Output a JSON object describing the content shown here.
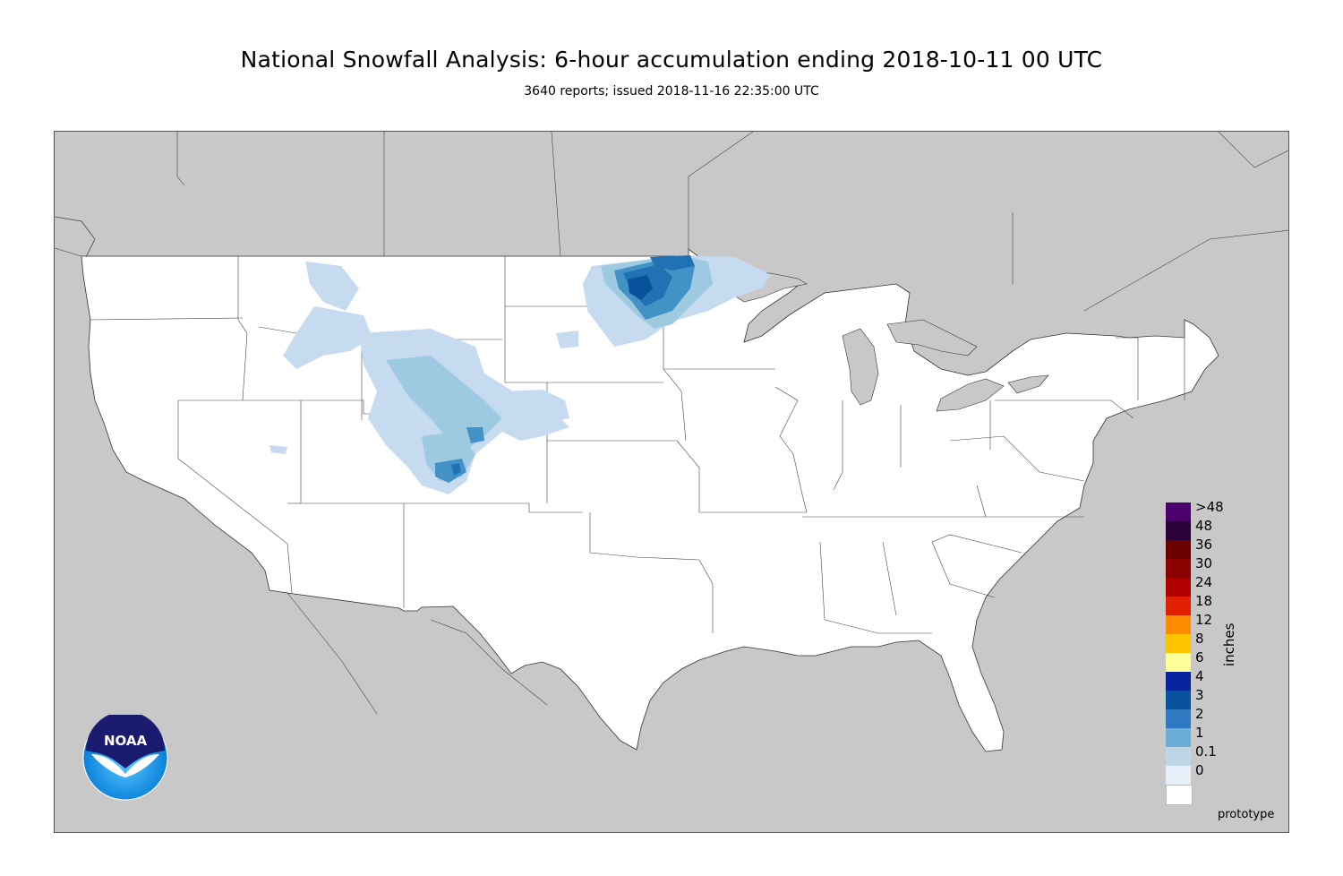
{
  "header": {
    "title": "National Snowfall Analysis: 6-hour accumulation ending 2018-10-11 00 UTC",
    "subtitle": "3640 reports; issued 2018-11-16 22:35:00 UTC"
  },
  "map": {
    "land_color": "#ffffff",
    "background_color": "#c8c8c8",
    "snow_palette": {
      "trace": "#c6dbef",
      "light": "#9ecae1",
      "moderate": "#4292c6",
      "heavy": "#08519c"
    }
  },
  "legend": {
    "unit": "inches",
    "levels": [
      ">48",
      "48",
      "36",
      "30",
      "24",
      "18",
      "12",
      "8",
      "6",
      "4",
      "3",
      "2",
      "1",
      "0.1",
      "0"
    ],
    "colors": [
      "#4b006e",
      "#2c0038",
      "#6b0000",
      "#8b0000",
      "#b00000",
      "#e02000",
      "#ff8c00",
      "#ffc400",
      "#ffff99",
      "#08249c",
      "#08519c",
      "#2f79c0",
      "#6baed6",
      "#bdd7e7",
      "#e6eef8"
    ],
    "base_color": "#ffffff"
  },
  "logo": {
    "text": "NOAA",
    "icon": "noaa-logo-icon"
  },
  "footer": {
    "watermark": "prototype"
  }
}
